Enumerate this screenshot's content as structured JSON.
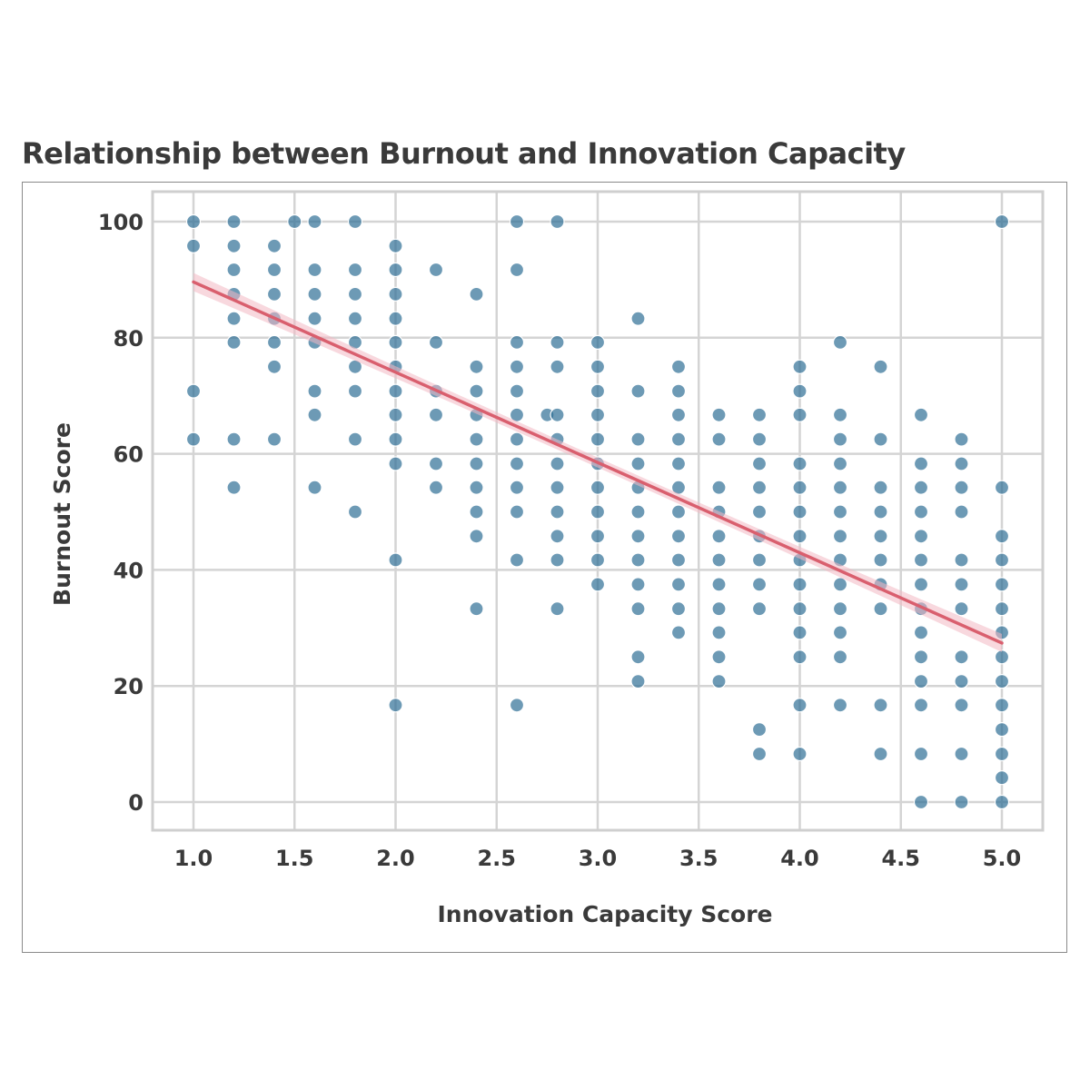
{
  "chart_data": {
    "type": "scatter",
    "title": "Relationship between Burnout and Innovation Capacity",
    "xlabel": "Innovation Capacity Score",
    "ylabel": "Burnout Score",
    "xlim": [
      0.8,
      5.2
    ],
    "ylim": [
      -5,
      105
    ],
    "xticks": [
      "1.0",
      "1.5",
      "2.0",
      "2.5",
      "3.0",
      "3.5",
      "4.0",
      "4.5",
      "5.0"
    ],
    "yticks": [
      "0",
      "20",
      "40",
      "60",
      "80",
      "100"
    ],
    "grid": true,
    "colors": {
      "points": "#2f6f96",
      "trend": "#d95f6e",
      "band": "#f2b8c2",
      "grid": "#d4d4d4"
    },
    "trend_line": {
      "x": [
        1.0,
        5.0
      ],
      "y": [
        89.6,
        27.4
      ]
    },
    "series": [
      {
        "points": [
          [
            1.0,
            100
          ],
          [
            1.0,
            95.8
          ],
          [
            1.0,
            70.8
          ],
          [
            1.0,
            62.5
          ],
          [
            1.2,
            100
          ],
          [
            1.2,
            95.8
          ],
          [
            1.2,
            91.7
          ],
          [
            1.2,
            87.5
          ],
          [
            1.2,
            83.3
          ],
          [
            1.2,
            79.2
          ],
          [
            1.2,
            62.5
          ],
          [
            1.2,
            54.2
          ],
          [
            1.4,
            95.8
          ],
          [
            1.4,
            91.7
          ],
          [
            1.4,
            87.5
          ],
          [
            1.4,
            83.3
          ],
          [
            1.4,
            79.2
          ],
          [
            1.4,
            75
          ],
          [
            1.4,
            62.5
          ],
          [
            1.5,
            100
          ],
          [
            1.6,
            100
          ],
          [
            1.6,
            91.7
          ],
          [
            1.6,
            87.5
          ],
          [
            1.6,
            83.3
          ],
          [
            1.6,
            79.2
          ],
          [
            1.6,
            70.8
          ],
          [
            1.6,
            66.7
          ],
          [
            1.6,
            54.2
          ],
          [
            1.8,
            100
          ],
          [
            1.8,
            91.7
          ],
          [
            1.8,
            87.5
          ],
          [
            1.8,
            83.3
          ],
          [
            1.8,
            79.2
          ],
          [
            1.8,
            75
          ],
          [
            1.8,
            70.8
          ],
          [
            1.8,
            62.5
          ],
          [
            1.8,
            50
          ],
          [
            2.0,
            95.8
          ],
          [
            2.0,
            91.7
          ],
          [
            2.0,
            87.5
          ],
          [
            2.0,
            83.3
          ],
          [
            2.0,
            79.2
          ],
          [
            2.0,
            75
          ],
          [
            2.0,
            70.8
          ],
          [
            2.0,
            66.7
          ],
          [
            2.0,
            62.5
          ],
          [
            2.0,
            58.3
          ],
          [
            2.0,
            41.7
          ],
          [
            2.0,
            16.7
          ],
          [
            2.2,
            91.7
          ],
          [
            2.2,
            79.2
          ],
          [
            2.2,
            70.8
          ],
          [
            2.2,
            66.7
          ],
          [
            2.2,
            58.3
          ],
          [
            2.2,
            54.2
          ],
          [
            2.4,
            87.5
          ],
          [
            2.4,
            75
          ],
          [
            2.4,
            70.8
          ],
          [
            2.4,
            66.7
          ],
          [
            2.4,
            62.5
          ],
          [
            2.4,
            58.3
          ],
          [
            2.4,
            54.2
          ],
          [
            2.4,
            50
          ],
          [
            2.4,
            45.8
          ],
          [
            2.4,
            33.3
          ],
          [
            2.6,
            100
          ],
          [
            2.6,
            91.7
          ],
          [
            2.6,
            79.2
          ],
          [
            2.6,
            75
          ],
          [
            2.6,
            70.8
          ],
          [
            2.6,
            66.7
          ],
          [
            2.6,
            62.5
          ],
          [
            2.6,
            58.3
          ],
          [
            2.6,
            54.2
          ],
          [
            2.6,
            50
          ],
          [
            2.6,
            41.7
          ],
          [
            2.6,
            16.7
          ],
          [
            2.75,
            66.7
          ],
          [
            2.8,
            100
          ],
          [
            2.8,
            79.2
          ],
          [
            2.8,
            75
          ],
          [
            2.8,
            66.7
          ],
          [
            2.8,
            62.5
          ],
          [
            2.8,
            58.3
          ],
          [
            2.8,
            54.2
          ],
          [
            2.8,
            50
          ],
          [
            2.8,
            45.8
          ],
          [
            2.8,
            41.7
          ],
          [
            2.8,
            33.3
          ],
          [
            3.0,
            79.2
          ],
          [
            3.0,
            75
          ],
          [
            3.0,
            70.8
          ],
          [
            3.0,
            66.7
          ],
          [
            3.0,
            62.5
          ],
          [
            3.0,
            58.3
          ],
          [
            3.0,
            54.2
          ],
          [
            3.0,
            50
          ],
          [
            3.0,
            45.8
          ],
          [
            3.0,
            41.7
          ],
          [
            3.0,
            37.5
          ],
          [
            3.2,
            83.3
          ],
          [
            3.2,
            70.8
          ],
          [
            3.2,
            62.5
          ],
          [
            3.2,
            58.3
          ],
          [
            3.2,
            54.2
          ],
          [
            3.2,
            50
          ],
          [
            3.2,
            45.8
          ],
          [
            3.2,
            41.7
          ],
          [
            3.2,
            37.5
          ],
          [
            3.2,
            33.3
          ],
          [
            3.2,
            25
          ],
          [
            3.2,
            20.8
          ],
          [
            3.4,
            75
          ],
          [
            3.4,
            70.8
          ],
          [
            3.4,
            66.7
          ],
          [
            3.4,
            62.5
          ],
          [
            3.4,
            58.3
          ],
          [
            3.4,
            54.2
          ],
          [
            3.4,
            50
          ],
          [
            3.4,
            45.8
          ],
          [
            3.4,
            41.7
          ],
          [
            3.4,
            37.5
          ],
          [
            3.4,
            33.3
          ],
          [
            3.4,
            29.2
          ],
          [
            3.6,
            66.7
          ],
          [
            3.6,
            62.5
          ],
          [
            3.6,
            54.2
          ],
          [
            3.6,
            50
          ],
          [
            3.6,
            45.8
          ],
          [
            3.6,
            41.7
          ],
          [
            3.6,
            37.5
          ],
          [
            3.6,
            33.3
          ],
          [
            3.6,
            29.2
          ],
          [
            3.6,
            25
          ],
          [
            3.6,
            20.8
          ],
          [
            3.8,
            66.7
          ],
          [
            3.8,
            62.5
          ],
          [
            3.8,
            58.3
          ],
          [
            3.8,
            54.2
          ],
          [
            3.8,
            50
          ],
          [
            3.8,
            45.8
          ],
          [
            3.8,
            41.7
          ],
          [
            3.8,
            37.5
          ],
          [
            3.8,
            33.3
          ],
          [
            3.8,
            12.5
          ],
          [
            3.8,
            8.3
          ],
          [
            4.0,
            75
          ],
          [
            4.0,
            70.8
          ],
          [
            4.0,
            66.7
          ],
          [
            4.0,
            58.3
          ],
          [
            4.0,
            54.2
          ],
          [
            4.0,
            50
          ],
          [
            4.0,
            45.8
          ],
          [
            4.0,
            41.7
          ],
          [
            4.0,
            37.5
          ],
          [
            4.0,
            33.3
          ],
          [
            4.0,
            29.2
          ],
          [
            4.0,
            25
          ],
          [
            4.0,
            16.7
          ],
          [
            4.0,
            8.3
          ],
          [
            4.2,
            79.2
          ],
          [
            4.2,
            66.7
          ],
          [
            4.2,
            62.5
          ],
          [
            4.2,
            58.3
          ],
          [
            4.2,
            54.2
          ],
          [
            4.2,
            50
          ],
          [
            4.2,
            45.8
          ],
          [
            4.2,
            41.7
          ],
          [
            4.2,
            37.5
          ],
          [
            4.2,
            33.3
          ],
          [
            4.2,
            29.2
          ],
          [
            4.2,
            25
          ],
          [
            4.2,
            16.7
          ],
          [
            4.4,
            75
          ],
          [
            4.4,
            62.5
          ],
          [
            4.4,
            54.2
          ],
          [
            4.4,
            50
          ],
          [
            4.4,
            45.8
          ],
          [
            4.4,
            41.7
          ],
          [
            4.4,
            37.5
          ],
          [
            4.4,
            33.3
          ],
          [
            4.4,
            16.7
          ],
          [
            4.4,
            8.3
          ],
          [
            4.6,
            66.7
          ],
          [
            4.6,
            58.3
          ],
          [
            4.6,
            54.2
          ],
          [
            4.6,
            50
          ],
          [
            4.6,
            45.8
          ],
          [
            4.6,
            41.7
          ],
          [
            4.6,
            37.5
          ],
          [
            4.6,
            33.3
          ],
          [
            4.6,
            29.2
          ],
          [
            4.6,
            25
          ],
          [
            4.6,
            20.8
          ],
          [
            4.6,
            16.7
          ],
          [
            4.6,
            8.3
          ],
          [
            4.6,
            0
          ],
          [
            4.8,
            62.5
          ],
          [
            4.8,
            58.3
          ],
          [
            4.8,
            54.2
          ],
          [
            4.8,
            50
          ],
          [
            4.8,
            41.7
          ],
          [
            4.8,
            37.5
          ],
          [
            4.8,
            33.3
          ],
          [
            4.8,
            25
          ],
          [
            4.8,
            20.8
          ],
          [
            4.8,
            16.7
          ],
          [
            4.8,
            8.3
          ],
          [
            4.8,
            0
          ],
          [
            5.0,
            100
          ],
          [
            5.0,
            54.2
          ],
          [
            5.0,
            45.8
          ],
          [
            5.0,
            41.7
          ],
          [
            5.0,
            37.5
          ],
          [
            5.0,
            33.3
          ],
          [
            5.0,
            29.2
          ],
          [
            5.0,
            25
          ],
          [
            5.0,
            20.8
          ],
          [
            5.0,
            16.7
          ],
          [
            5.0,
            12.5
          ],
          [
            5.0,
            8.3
          ],
          [
            5.0,
            4.2
          ],
          [
            5.0,
            0
          ]
        ]
      }
    ]
  }
}
